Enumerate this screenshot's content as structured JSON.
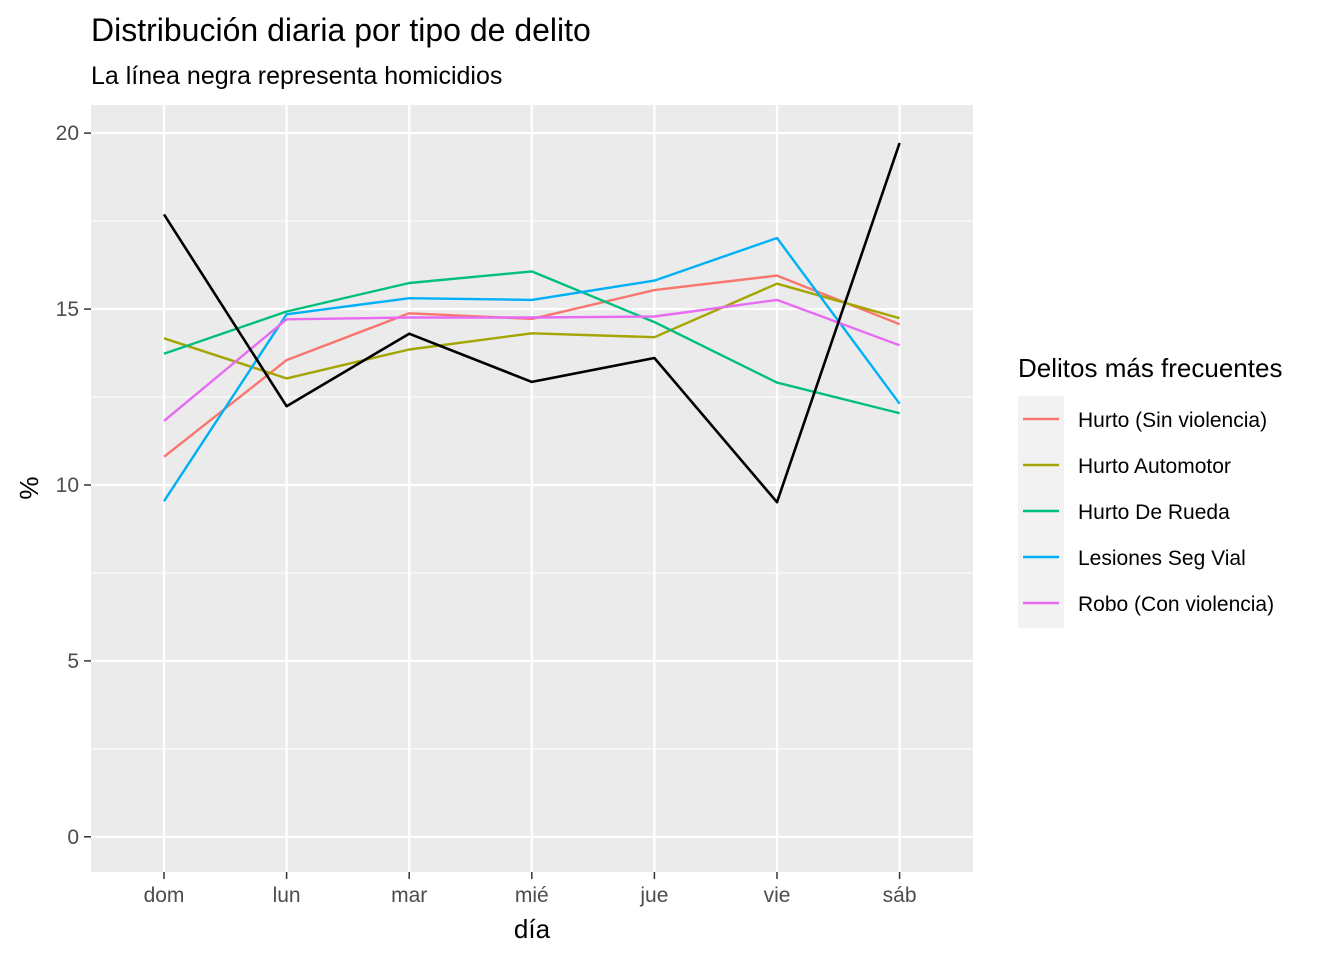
{
  "chart_data": {
    "type": "line",
    "title": "Distribución diaria por tipo de delito",
    "subtitle": "La línea negra representa homicidios",
    "xlabel": "día",
    "ylabel": "%",
    "categories": [
      "dom",
      "lun",
      "mar",
      "mié",
      "jue",
      "vie",
      "sáb"
    ],
    "y_ticks": [
      "0",
      "5",
      "10",
      "15",
      "20"
    ],
    "ylim": [
      -1,
      20.8
    ],
    "grid": true,
    "legend": {
      "title": "Delitos más frecuentes",
      "placement": "right"
    },
    "series": [
      {
        "name": "Hurto (Sin violencia)",
        "color": "#F8766D",
        "values": [
          10.8,
          13.55,
          14.88,
          14.72,
          15.54,
          15.95,
          14.57
        ]
      },
      {
        "name": "Hurto Automotor",
        "color": "#A3A500",
        "values": [
          14.17,
          13.03,
          13.85,
          14.31,
          14.2,
          15.72,
          14.74
        ]
      },
      {
        "name": "Hurto De Rueda",
        "color": "#00BF7D",
        "values": [
          13.73,
          14.93,
          15.74,
          16.07,
          14.63,
          12.91,
          12.04
        ]
      },
      {
        "name": "Lesiones Seg Vial",
        "color": "#00B0F6",
        "values": [
          9.54,
          14.85,
          15.31,
          15.26,
          15.81,
          17.02,
          12.31
        ]
      },
      {
        "name": "Robo (Con violencia)",
        "color": "#E76BF3",
        "values": [
          11.82,
          14.71,
          14.76,
          14.76,
          14.79,
          15.26,
          13.97
        ]
      }
    ],
    "reference_line": {
      "color": "#000000",
      "values": [
        17.69,
        12.24,
        14.3,
        12.93,
        13.61,
        9.51,
        19.72
      ]
    }
  }
}
